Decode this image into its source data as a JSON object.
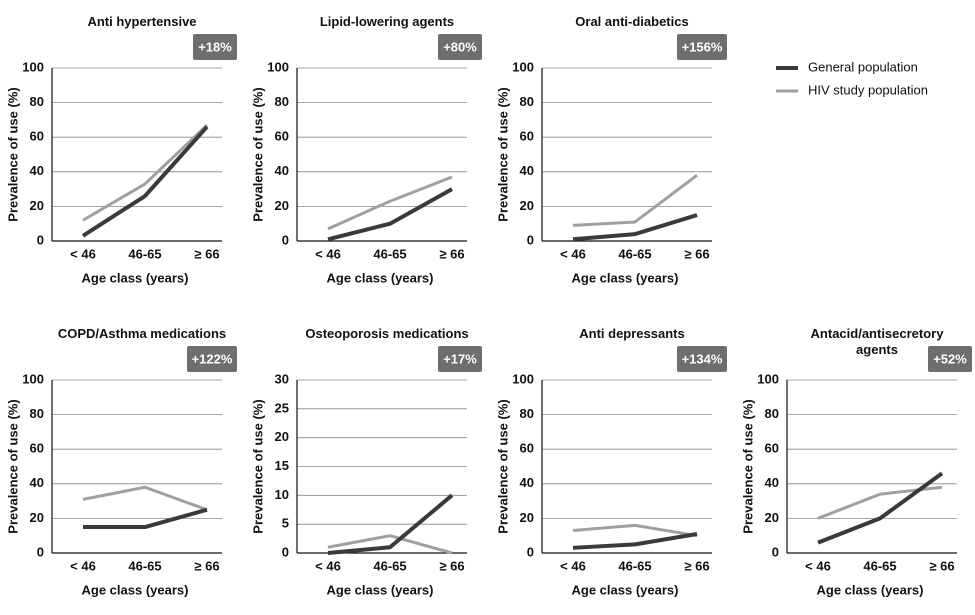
{
  "chart_data": [
    {
      "type": "line",
      "title": "Anti hypertensive",
      "annotation": "+18%",
      "xlabel": "Age class (years)",
      "ylabel": "Prevalence of use (%)",
      "categories": [
        "< 46",
        "46-65",
        "≥ 66"
      ],
      "ylim": [
        0,
        100
      ],
      "yticks": [
        0,
        20,
        40,
        60,
        80,
        100
      ],
      "grid": true,
      "series": [
        {
          "name": "General population",
          "color": "#3a3a3a",
          "values": [
            3,
            26,
            66
          ]
        },
        {
          "name": "HIV study population",
          "color": "#a0a0a0",
          "values": [
            12,
            33,
            67
          ]
        }
      ]
    },
    {
      "type": "line",
      "title": "Lipid-lowering agents",
      "annotation": "+80%",
      "xlabel": "Age class (years)",
      "ylabel": "Prevalence of use (%)",
      "categories": [
        "< 46",
        "46-65",
        "≥ 66"
      ],
      "ylim": [
        0,
        100
      ],
      "yticks": [
        0,
        20,
        40,
        60,
        80,
        100
      ],
      "grid": true,
      "series": [
        {
          "name": "General population",
          "color": "#3a3a3a",
          "values": [
            1,
            10,
            30
          ]
        },
        {
          "name": "HIV study population",
          "color": "#a0a0a0",
          "values": [
            7,
            23,
            37
          ]
        }
      ]
    },
    {
      "type": "line",
      "title": "Oral anti-diabetics",
      "annotation": "+156%",
      "xlabel": "Age class (years)",
      "ylabel": "Prevalence of use (%)",
      "categories": [
        "< 46",
        "46-65",
        "≥ 66"
      ],
      "ylim": [
        0,
        100
      ],
      "yticks": [
        0,
        20,
        40,
        60,
        80,
        100
      ],
      "grid": true,
      "series": [
        {
          "name": "General population",
          "color": "#3a3a3a",
          "values": [
            1,
            4,
            15
          ]
        },
        {
          "name": "HIV study population",
          "color": "#a0a0a0",
          "values": [
            9,
            11,
            38
          ]
        }
      ]
    },
    {
      "type": "line",
      "title": "COPD/Asthma medications",
      "annotation": "+122%",
      "xlabel": "Age class (years)",
      "ylabel": "Prevalence of use (%)",
      "categories": [
        "< 46",
        "46-65",
        "≥ 66"
      ],
      "ylim": [
        0,
        100
      ],
      "yticks": [
        0,
        20,
        40,
        60,
        80,
        100
      ],
      "grid": true,
      "series": [
        {
          "name": "General population",
          "color": "#3a3a3a",
          "values": [
            15,
            15,
            25
          ]
        },
        {
          "name": "HIV study population",
          "color": "#a0a0a0",
          "values": [
            31,
            38,
            25
          ]
        }
      ]
    },
    {
      "type": "line",
      "title": "Osteoporosis medications",
      "annotation": "+17%",
      "xlabel": "Age class (years)",
      "ylabel": "Prevalence of use (%)",
      "categories": [
        "< 46",
        "46-65",
        "≥ 66"
      ],
      "ylim": [
        0,
        30
      ],
      "yticks": [
        0,
        5,
        10,
        15,
        20,
        25,
        30
      ],
      "grid": true,
      "series": [
        {
          "name": "General population",
          "color": "#3a3a3a",
          "values": [
            0,
            1,
            10
          ]
        },
        {
          "name": "HIV study population",
          "color": "#a0a0a0",
          "values": [
            1,
            3,
            0
          ]
        }
      ]
    },
    {
      "type": "line",
      "title": "Anti depressants",
      "annotation": "+134%",
      "xlabel": "Age class (years)",
      "ylabel": "Prevalence of use (%)",
      "categories": [
        "< 46",
        "46-65",
        "≥ 66"
      ],
      "ylim": [
        0,
        100
      ],
      "yticks": [
        0,
        20,
        40,
        60,
        80,
        100
      ],
      "grid": true,
      "series": [
        {
          "name": "General population",
          "color": "#3a3a3a",
          "values": [
            3,
            5,
            11
          ]
        },
        {
          "name": "HIV study population",
          "color": "#a0a0a0",
          "values": [
            13,
            16,
            10
          ]
        }
      ]
    },
    {
      "type": "line",
      "title": "Antacid/antisecretory agents",
      "annotation": "+52%",
      "xlabel": "Age class (years)",
      "ylabel": "Prevalence of use (%)",
      "categories": [
        "< 46",
        "46-65",
        "≥ 66"
      ],
      "ylim": [
        0,
        100
      ],
      "yticks": [
        0,
        20,
        40,
        60,
        80,
        100
      ],
      "grid": true,
      "series": [
        {
          "name": "General population",
          "color": "#3a3a3a",
          "values": [
            6,
            20,
            46
          ]
        },
        {
          "name": "HIV study population",
          "color": "#a0a0a0",
          "values": [
            20,
            34,
            38
          ]
        }
      ]
    }
  ]
}
